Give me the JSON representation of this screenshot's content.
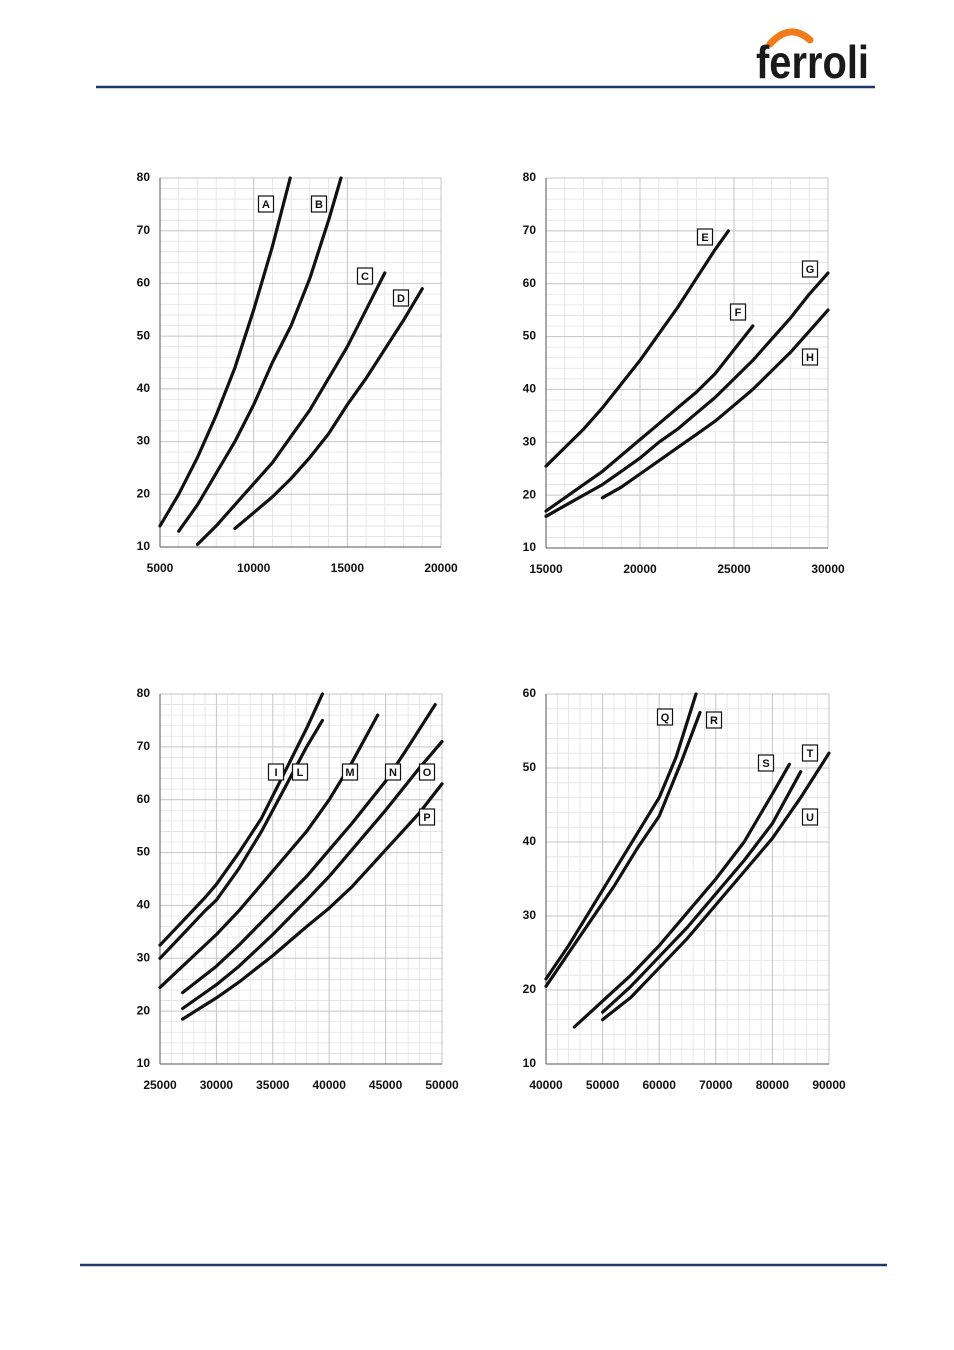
{
  "header": {
    "logo": "ferroli"
  },
  "chart_data": [
    {
      "type": "line",
      "xlim": [
        5000,
        20000
      ],
      "ylim": [
        10,
        80
      ],
      "xticks": [
        5000,
        10000,
        15000,
        20000
      ],
      "yticks": [
        10,
        20,
        30,
        40,
        50,
        60,
        70,
        80
      ],
      "grid": true,
      "color": "#111111",
      "series": [
        {
          "name": "A",
          "x": [
            5000,
            6000,
            7000,
            8000,
            9000,
            10000,
            11000,
            11950
          ],
          "values": [
            14,
            20,
            27,
            35,
            44,
            55,
            67,
            80
          ]
        },
        {
          "name": "B",
          "x": [
            6000,
            7000,
            8000,
            9000,
            10000,
            11000,
            12000,
            13000,
            14000,
            14660
          ],
          "values": [
            13,
            18,
            24,
            30,
            37,
            45,
            52,
            61,
            72,
            80
          ]
        },
        {
          "name": "C",
          "x": [
            7000,
            8000,
            9000,
            10000,
            11000,
            12000,
            13000,
            14000,
            15000,
            16000,
            17000
          ],
          "values": [
            10.5,
            14,
            18,
            22,
            26,
            31,
            36,
            42,
            48,
            55,
            62
          ]
        },
        {
          "name": "D",
          "x": [
            9000,
            10000,
            11000,
            12000,
            13000,
            14000,
            15000,
            16000,
            17000,
            18000,
            19000
          ],
          "values": [
            13.5,
            16.5,
            19.5,
            23,
            27,
            31.5,
            37,
            42,
            47.5,
            53,
            59
          ]
        }
      ]
    },
    {
      "type": "line",
      "xlim": [
        15000,
        30000
      ],
      "ylim": [
        10,
        80
      ],
      "xticks": [
        15000,
        20000,
        25000,
        30000
      ],
      "yticks": [
        10,
        20,
        30,
        40,
        50,
        60,
        70,
        80
      ],
      "grid": true,
      "color": "#111111",
      "series": [
        {
          "name": "E",
          "x": [
            15000,
            16000,
            17000,
            18000,
            19000,
            20000,
            21000,
            22000,
            23000,
            24000,
            24700
          ],
          "values": [
            25.5,
            29,
            32.5,
            36.5,
            41,
            45.5,
            50.5,
            55.5,
            61,
            66.5,
            70
          ]
        },
        {
          "name": "F",
          "x": [
            15000,
            16000,
            17000,
            18000,
            19000,
            20000,
            21000,
            22000,
            23000,
            24000,
            25000,
            26000
          ],
          "values": [
            17,
            19.5,
            22,
            24.5,
            27.5,
            30.5,
            33.5,
            36.5,
            39.5,
            43,
            47.5,
            52
          ]
        },
        {
          "name": "G",
          "x": [
            15000,
            16000,
            17000,
            18000,
            19000,
            20000,
            21000,
            22000,
            23000,
            24000,
            25000,
            26000,
            27000,
            28000,
            29000,
            30000
          ],
          "values": [
            16,
            18,
            20,
            22,
            24.5,
            27,
            30,
            32.5,
            35.5,
            38.5,
            42,
            45.5,
            49.5,
            53.5,
            58,
            62
          ]
        },
        {
          "name": "H",
          "x": [
            18000,
            19000,
            20000,
            21000,
            22000,
            23000,
            24000,
            25000,
            26000,
            27000,
            28000,
            29000,
            30000
          ],
          "values": [
            19.5,
            21.5,
            24,
            26.5,
            29,
            31.5,
            34,
            37,
            40,
            43.5,
            47,
            51,
            55
          ]
        }
      ]
    },
    {
      "type": "line",
      "xlim": [
        25000,
        50000
      ],
      "ylim": [
        10,
        80
      ],
      "xticks": [
        25000,
        30000,
        35000,
        40000,
        45000,
        50000
      ],
      "yticks": [
        10,
        20,
        30,
        40,
        50,
        60,
        70,
        80
      ],
      "grid": true,
      "color": "#111111",
      "series": [
        {
          "name": "I",
          "x": [
            25000,
            27000,
            29000,
            30000,
            32000,
            34000,
            36000,
            38000,
            39400
          ],
          "values": [
            32.5,
            37,
            41.5,
            44,
            50,
            56.5,
            65,
            73.5,
            80
          ]
        },
        {
          "name": "L",
          "x": [
            25000,
            27000,
            29000,
            30000,
            32000,
            34000,
            36000,
            38000,
            39400
          ],
          "values": [
            30,
            34.5,
            39,
            41,
            47,
            54,
            62,
            70,
            75
          ]
        },
        {
          "name": "M",
          "x": [
            25000,
            27000,
            30000,
            32000,
            35000,
            38000,
            40000,
            42000,
            44300
          ],
          "values": [
            24.5,
            28.5,
            34.5,
            39,
            46.5,
            54,
            60,
            67,
            76
          ]
        },
        {
          "name": "N",
          "x": [
            27000,
            30000,
            32000,
            35000,
            38000,
            40000,
            42000,
            45000,
            47000,
            49400
          ],
          "values": [
            23.5,
            28.5,
            32.5,
            39,
            45.5,
            50.5,
            55.5,
            63.5,
            70,
            78
          ]
        },
        {
          "name": "O",
          "x": [
            27000,
            30000,
            32000,
            35000,
            38000,
            40000,
            42000,
            45000,
            48000,
            50000
          ],
          "values": [
            20.5,
            25,
            28.5,
            34.5,
            41,
            45.5,
            50.5,
            58,
            66,
            71
          ]
        },
        {
          "name": "P",
          "x": [
            27000,
            30000,
            32000,
            35000,
            38000,
            40000,
            42000,
            45000,
            48000,
            50000
          ],
          "values": [
            18.5,
            22.5,
            25.5,
            30.5,
            36,
            39.5,
            43.5,
            50.5,
            57.5,
            63
          ]
        }
      ]
    },
    {
      "type": "line",
      "xlim": [
        40000,
        90000
      ],
      "ylim": [
        10,
        60
      ],
      "xticks": [
        40000,
        50000,
        60000,
        70000,
        80000,
        90000
      ],
      "yticks": [
        10,
        20,
        30,
        40,
        50,
        60
      ],
      "grid": true,
      "color": "#111111",
      "series": [
        {
          "name": "Q",
          "x": [
            40000,
            44000,
            48000,
            52000,
            56000,
            60000,
            63000,
            66500
          ],
          "values": [
            21.5,
            26,
            31,
            36,
            41,
            46,
            51.5,
            60
          ]
        },
        {
          "name": "R",
          "x": [
            40000,
            44000,
            48000,
            52000,
            56000,
            60000,
            64000,
            67200
          ],
          "values": [
            20.5,
            25,
            29.5,
            34,
            39,
            43.5,
            51,
            57.5
          ]
        },
        {
          "name": "S",
          "x": [
            45000,
            50000,
            55000,
            60000,
            65000,
            70000,
            75000,
            80000,
            83000
          ],
          "values": [
            15,
            18.5,
            22,
            26,
            30.5,
            35,
            40,
            46.5,
            50.5
          ]
        },
        {
          "name": "T",
          "x": [
            50000,
            55000,
            60000,
            65000,
            70000,
            75000,
            80000,
            85000
          ],
          "values": [
            17,
            20.5,
            24.5,
            28.5,
            33,
            37.5,
            42.5,
            49.5
          ]
        },
        {
          "name": "U",
          "x": [
            50000,
            55000,
            60000,
            65000,
            70000,
            75000,
            80000,
            85000,
            90000
          ],
          "values": [
            16,
            19,
            23,
            27,
            31.5,
            36,
            40.5,
            46,
            52
          ]
        }
      ]
    }
  ]
}
